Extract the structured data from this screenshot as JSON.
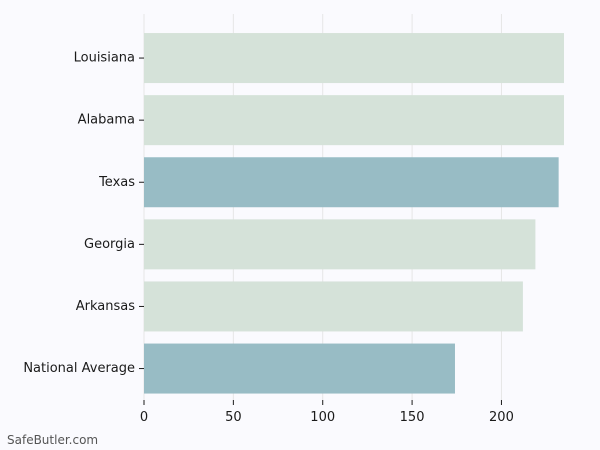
{
  "chart_data": {
    "type": "bar",
    "orientation": "horizontal",
    "categories": [
      "Louisiana",
      "Alabama",
      "Texas",
      "Georgia",
      "Arkansas",
      "National Average"
    ],
    "values": [
      235,
      235,
      232,
      219,
      212,
      174
    ],
    "highlighted": [
      "Texas",
      "National Average"
    ],
    "xticks": [
      0,
      50,
      100,
      150,
      200
    ],
    "xlim": [
      0,
      235
    ],
    "grid": "vertical",
    "colors": {
      "default_bar": "#d5e2d9",
      "highlight_bar": "#98bcc5",
      "grid": "#e6e6e6",
      "text": "#1a1a1a"
    }
  },
  "watermark": "SafeButler.com"
}
